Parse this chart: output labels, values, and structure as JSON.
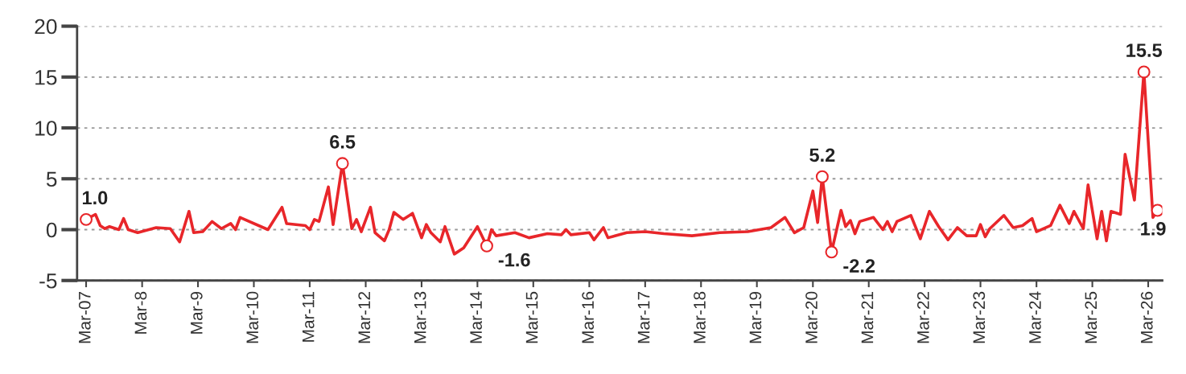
{
  "chart_data": {
    "type": "line",
    "x": [
      "2007-03",
      "2007-05",
      "2007-06",
      "2007-07",
      "2007-08",
      "2007-10",
      "2007-11",
      "2007-12",
      "2008-02",
      "2008-06",
      "2008-09",
      "2008-11",
      "2009-01",
      "2009-02",
      "2009-04",
      "2009-06",
      "2009-08",
      "2009-10",
      "2009-11",
      "2009-12",
      "2010-06",
      "2010-09",
      "2010-10",
      "2011-02",
      "2011-03",
      "2011-04",
      "2011-05",
      "2011-07",
      "2011-08",
      "2011-10",
      "2011-12",
      "2012-01",
      "2012-02",
      "2012-04",
      "2012-05",
      "2012-07",
      "2012-08",
      "2012-09",
      "2012-11",
      "2013-01",
      "2013-03",
      "2013-04",
      "2013-05",
      "2013-07",
      "2013-08",
      "2013-10",
      "2013-12",
      "2014-03",
      "2014-05",
      "2014-06",
      "2014-07",
      "2014-11",
      "2015-02",
      "2015-06",
      "2015-09",
      "2015-10",
      "2015-11",
      "2016-03",
      "2016-04",
      "2016-06",
      "2016-07",
      "2016-11",
      "2017-03",
      "2017-07",
      "2018-01",
      "2018-07",
      "2019-01",
      "2019-06",
      "2019-09",
      "2019-11",
      "2020-01",
      "2020-03",
      "2020-04",
      "2020-05",
      "2020-07",
      "2020-09",
      "2020-10",
      "2020-11",
      "2020-12",
      "2021-01",
      "2021-04",
      "2021-06",
      "2021-07",
      "2021-08",
      "2021-09",
      "2021-12",
      "2022-02",
      "2022-04",
      "2022-06",
      "2022-08",
      "2022-10",
      "2022-12",
      "2023-02",
      "2023-03",
      "2023-04",
      "2023-05",
      "2023-08",
      "2023-10",
      "2023-12",
      "2024-02",
      "2024-03",
      "2024-06",
      "2024-08",
      "2024-10",
      "2024-11",
      "2025-01",
      "2025-02",
      "2025-04",
      "2025-05",
      "2025-06",
      "2025-07",
      "2025-09",
      "2025-10",
      "2025-12",
      "2026-02",
      "2026-04",
      "2026-05"
    ],
    "series": [
      {
        "color": "#e8262a",
        "values": [
          1.0,
          1.5,
          0.4,
          0.1,
          0.3,
          0,
          1.1,
          0,
          -0.3,
          0.2,
          0.1,
          -1.2,
          1.8,
          -0.3,
          -0.2,
          0.8,
          0.1,
          0.6,
          0,
          1.2,
          0,
          2.2,
          0.6,
          0.4,
          0,
          1.0,
          0.8,
          4.2,
          0.5,
          6.5,
          0.1,
          1.0,
          -0.2,
          2.2,
          -0.3,
          -1.1,
          0,
          1.7,
          1.0,
          1.6,
          -0.8,
          0.5,
          -0.3,
          -1.2,
          0.3,
          -2.4,
          -1.8,
          0.3,
          -1.6,
          0,
          -0.6,
          -0.3,
          -0.8,
          -0.4,
          -0.5,
          0,
          -0.5,
          -0.3,
          -1.0,
          0.2,
          -0.8,
          -0.3,
          -0.2,
          -0.4,
          -0.6,
          -0.3,
          -0.2,
          0.2,
          1.2,
          -0.3,
          0.2,
          3.8,
          0.7,
          5.2,
          -2.2,
          1.9,
          0.3,
          0.9,
          -0.4,
          0.8,
          1.2,
          0,
          0.8,
          -0.2,
          0.8,
          1.4,
          -0.9,
          1.8,
          0.3,
          -1.0,
          0.2,
          -0.6,
          -0.6,
          0.5,
          -0.7,
          0.1,
          1.4,
          0.2,
          0.4,
          1.1,
          -0.2,
          0.4,
          2.4,
          0.6,
          1.8,
          0.1,
          4.4,
          -0.9,
          1.8,
          -1.1,
          1.8,
          1.5,
          7.4,
          2.9,
          15.5,
          1.2,
          1.9
        ]
      }
    ],
    "annotations": [
      {
        "text": "1.0",
        "x": "2007-03",
        "y": 1.0
      },
      {
        "text": "6.5",
        "x": "2011-10",
        "y": 6.5
      },
      {
        "text": "-1.6",
        "x": "2014-05",
        "y": -1.6
      },
      {
        "text": "5.2",
        "x": "2020-05",
        "y": 5.2
      },
      {
        "text": "-2.2",
        "x": "2020-07",
        "y": -2.2
      },
      {
        "text": "15.5",
        "x": "2026-02",
        "y": 15.5
      },
      {
        "text": "1.9",
        "x": "2026-05",
        "y": 1.9
      }
    ],
    "xlim": [
      "2007-01",
      "2026-06"
    ],
    "xticks": [
      {
        "value": "2007-03",
        "label": "Mar-07"
      },
      {
        "value": "2008-03",
        "label": "Mar-8"
      },
      {
        "value": "2009-03",
        "label": "Mar-9"
      },
      {
        "value": "2010-03",
        "label": "Mar-10"
      },
      {
        "value": "2011-03",
        "label": "Mar-11"
      },
      {
        "value": "2012-03",
        "label": "Mar-12"
      },
      {
        "value": "2013-03",
        "label": "Mar-13"
      },
      {
        "value": "2014-03",
        "label": "Mar-14"
      },
      {
        "value": "2015-03",
        "label": "Mar-15"
      },
      {
        "value": "2016-03",
        "label": "Mar-16"
      },
      {
        "value": "2017-03",
        "label": "Mar-17"
      },
      {
        "value": "2018-03",
        "label": "Mar-18"
      },
      {
        "value": "2019-03",
        "label": "Mar-19"
      },
      {
        "value": "2020-03",
        "label": "Mar-20"
      },
      {
        "value": "2021-03",
        "label": "Mar-21"
      },
      {
        "value": "2022-03",
        "label": "Mar-22"
      },
      {
        "value": "2023-03",
        "label": "Mar-23"
      },
      {
        "value": "2024-03",
        "label": "Mar-24"
      },
      {
        "value": "2025-03",
        "label": "Mar-25"
      },
      {
        "value": "2026-03",
        "label": "Mar-26"
      }
    ],
    "ylim": [
      -5,
      20
    ],
    "yticks": [
      -5,
      0,
      5,
      10,
      15,
      20
    ],
    "grid": "y",
    "legend": false,
    "marker": "none",
    "line_style": "solid"
  }
}
